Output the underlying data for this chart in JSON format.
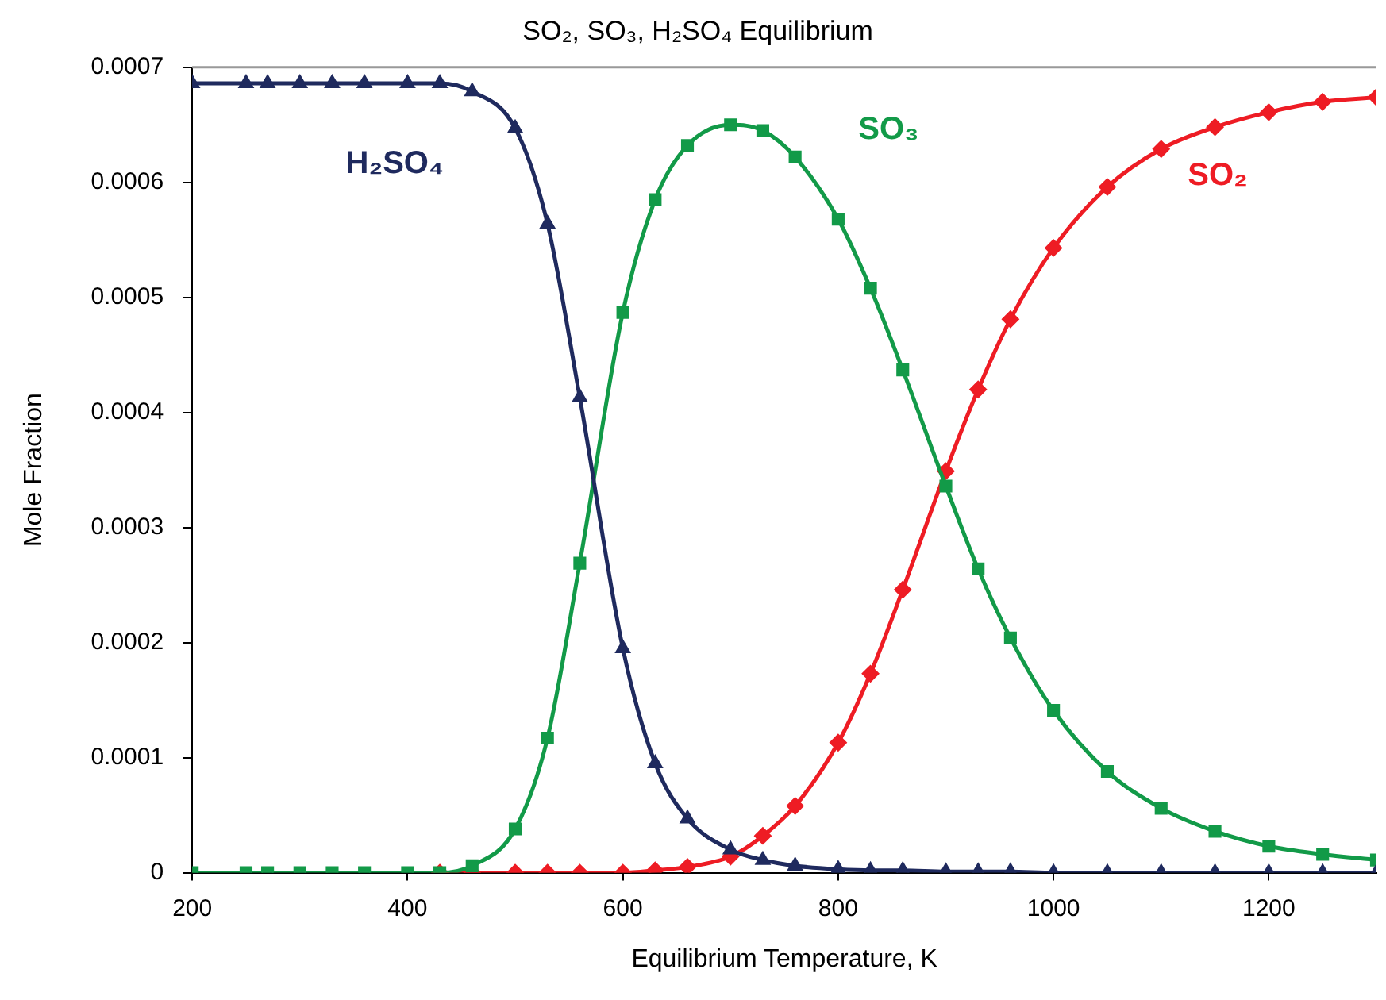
{
  "chart_data": {
    "type": "line",
    "title": "SO₂, SO₃, H₂SO₄ Equilibrium",
    "xlabel": "Equilibrium Temperature, K",
    "ylabel": "Mole Fraction",
    "x": [
      200,
      250,
      270,
      300,
      330,
      360,
      400,
      430,
      460,
      500,
      530,
      560,
      600,
      630,
      660,
      700,
      730,
      760,
      800,
      830,
      860,
      900,
      930,
      960,
      1000,
      1050,
      1100,
      1150,
      1200,
      1250,
      1300
    ],
    "series": [
      {
        "name": "H₂SO₄",
        "color": "#1f2a5e",
        "marker": "triangle",
        "values": [
          0.000686,
          0.000686,
          0.000686,
          0.000686,
          0.000686,
          0.000686,
          0.000686,
          0.000686,
          0.000679,
          0.000647,
          0.000564,
          0.000413,
          0.000195,
          9.5e-05,
          4.7e-05,
          2e-05,
          1.1e-05,
          6e-06,
          3e-06,
          2e-06,
          2e-06,
          1e-06,
          1e-06,
          1e-06,
          0,
          0,
          0,
          0,
          0,
          0,
          0
        ]
      },
      {
        "name": "SO₃",
        "color": "#129a48",
        "marker": "square",
        "values": [
          0,
          0,
          0,
          0,
          0,
          0,
          0,
          0,
          6e-06,
          3.8e-05,
          0.000117,
          0.000269,
          0.000487,
          0.000585,
          0.000632,
          0.00065,
          0.000645,
          0.000622,
          0.000568,
          0.000508,
          0.000437,
          0.000336,
          0.000264,
          0.000204,
          0.000141,
          8.8e-05,
          5.6e-05,
          3.6e-05,
          2.3e-05,
          1.6e-05,
          1.1e-05
        ]
      },
      {
        "name": "SO₂",
        "color": "#ee1c24",
        "marker": "diamond",
        "values": [
          null,
          null,
          null,
          null,
          null,
          null,
          null,
          0,
          0,
          0,
          0,
          0,
          0,
          2e-06,
          5e-06,
          1.4e-05,
          3.2e-05,
          5.8e-05,
          0.000113,
          0.000173,
          0.000246,
          0.000349,
          0.00042,
          0.000481,
          0.000543,
          0.000596,
          0.000629,
          0.000648,
          0.000661,
          0.00067,
          0.000674
        ]
      }
    ],
    "xlim": [
      200,
      1300
    ],
    "xticks": [
      200,
      400,
      600,
      800,
      1000,
      1200
    ],
    "ylim": [
      0,
      0.0007
    ],
    "yticks": [
      0,
      0.0001,
      0.0002,
      0.0003,
      0.0004,
      0.0005,
      0.0006,
      0.0007
    ],
    "grid": false,
    "legend": false,
    "line_style": "solid"
  }
}
